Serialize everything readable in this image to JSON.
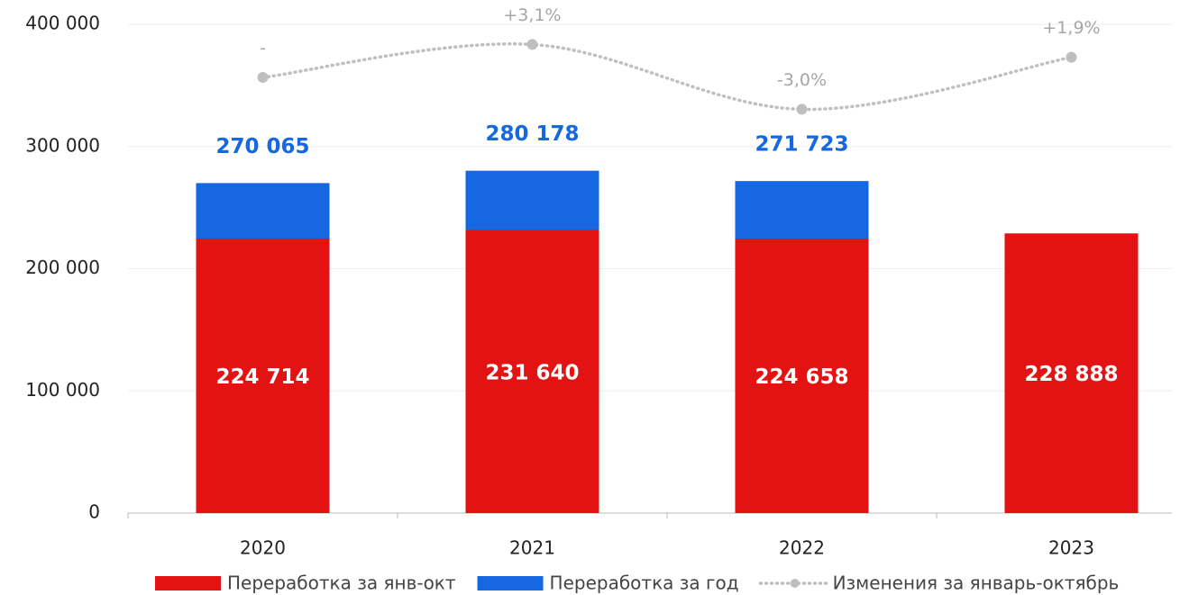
{
  "chart_data": {
    "type": "bar",
    "categories": [
      "2020",
      "2021",
      "2022",
      "2023"
    ],
    "series": [
      {
        "name": "Переработка за янв-окт",
        "color": "#e31313",
        "values": [
          224714,
          231640,
          224658,
          228888
        ],
        "value_labels": [
          "224 714",
          "231 640",
          "224 658",
          "228 888"
        ]
      },
      {
        "name": "Переработка за год",
        "color": "#1567e2",
        "values": [
          270065,
          280178,
          271723,
          null
        ],
        "value_labels": [
          "270 065",
          "280 178",
          "271 723",
          null
        ]
      },
      {
        "name": "Изменения за январь-октябрь",
        "type": "line",
        "axis": "y2",
        "color": "#bfbfbf",
        "values": [
          0,
          3.1,
          -3.0,
          1.9
        ],
        "value_labels": [
          "-",
          "+3,1%",
          "-3,0%",
          "+1,9%"
        ]
      }
    ],
    "ylim": [
      0,
      400000
    ],
    "yticks": [
      0,
      {
        "value": 100000,
        "label": "100 000"
      },
      {
        "value": 200000,
        "label": "200 000"
      },
      {
        "value": 300000,
        "label": "300 000"
      },
      {
        "value": 400000,
        "label": "400 000"
      }
    ],
    "y2lim": [
      -41,
      5
    ],
    "grid": true,
    "legend": "bottom"
  }
}
